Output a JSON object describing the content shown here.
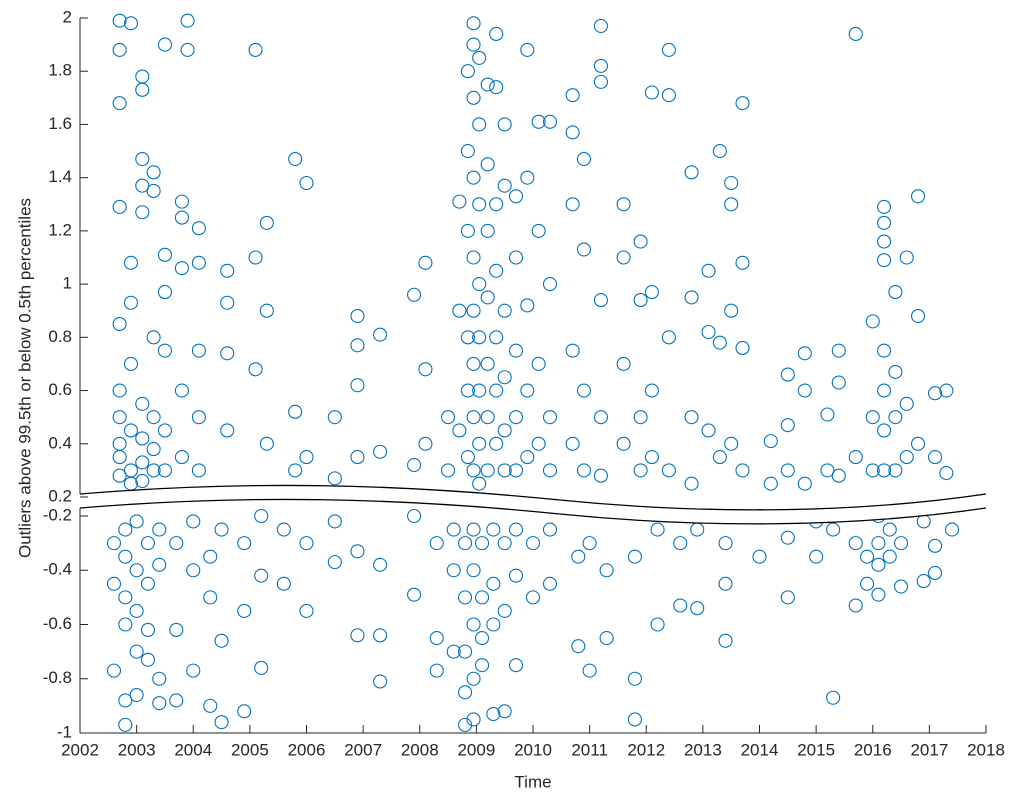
{
  "chart_data": [
    {
      "type": "scatter",
      "y_label": "Outliers above 99.5th or below 0.5th percentiles",
      "color": "#0072BD",
      "ylim": [
        0.2,
        2
      ],
      "yticks": [
        0.2,
        0.4,
        0.6,
        0.8,
        1,
        1.2,
        1.4,
        1.6,
        1.8,
        2
      ],
      "x": [
        2002.7,
        2002.7,
        2002.7,
        2002.7,
        2002.7,
        2002.7,
        2002.7,
        2002.7,
        2002.7,
        2002.7,
        2002.9,
        2002.9,
        2002.9,
        2002.9,
        2002.9,
        2002.9,
        2002.9,
        2003.1,
        2003.1,
        2003.1,
        2003.1,
        2003.1,
        2003.1,
        2003.1,
        2003.1,
        2003.1,
        2003.3,
        2003.3,
        2003.3,
        2003.3,
        2003.3,
        2003.3,
        2003.5,
        2003.5,
        2003.5,
        2003.5,
        2003.5,
        2003.5,
        2003.8,
        2003.8,
        2003.8,
        2003.8,
        2003.8,
        2003.9,
        2003.9,
        2004.1,
        2004.1,
        2004.1,
        2004.1,
        2004.1,
        2004.6,
        2004.6,
        2004.6,
        2004.6,
        2005.1,
        2005.1,
        2005.1,
        2005.3,
        2005.3,
        2005.3,
        2005.8,
        2005.8,
        2005.8,
        2006.0,
        2006.0,
        2006.5,
        2006.5,
        2006.9,
        2006.9,
        2006.9,
        2006.9,
        2007.3,
        2007.3,
        2007.9,
        2007.9,
        2008.1,
        2008.1,
        2008.1,
        2008.5,
        2008.5,
        2008.7,
        2008.7,
        2008.7,
        2008.85,
        2008.85,
        2008.85,
        2008.85,
        2008.85,
        2008.85,
        2008.95,
        2008.95,
        2008.95,
        2008.95,
        2008.95,
        2008.95,
        2008.95,
        2008.95,
        2008.95,
        2009.05,
        2009.05,
        2009.05,
        2009.05,
        2009.05,
        2009.05,
        2009.05,
        2009.05,
        2009.2,
        2009.2,
        2009.2,
        2009.2,
        2009.2,
        2009.2,
        2009.2,
        2009.35,
        2009.35,
        2009.35,
        2009.35,
        2009.35,
        2009.35,
        2009.35,
        2009.5,
        2009.5,
        2009.5,
        2009.5,
        2009.5,
        2009.5,
        2009.7,
        2009.7,
        2009.7,
        2009.7,
        2009.7,
        2009.9,
        2009.9,
        2009.9,
        2009.9,
        2009.9,
        2010.1,
        2010.1,
        2010.1,
        2010.1,
        2010.3,
        2010.3,
        2010.3,
        2010.3,
        2010.7,
        2010.7,
        2010.7,
        2010.7,
        2010.7,
        2010.9,
        2010.9,
        2010.9,
        2010.9,
        2011.2,
        2011.2,
        2011.2,
        2011.2,
        2011.2,
        2011.2,
        2011.6,
        2011.6,
        2011.6,
        2011.6,
        2011.9,
        2011.9,
        2011.9,
        2011.9,
        2012.1,
        2012.1,
        2012.1,
        2012.1,
        2012.4,
        2012.4,
        2012.4,
        2012.4,
        2012.8,
        2012.8,
        2012.8,
        2012.8,
        2013.1,
        2013.1,
        2013.1,
        2013.3,
        2013.3,
        2013.3,
        2013.5,
        2013.5,
        2013.5,
        2013.5,
        2013.7,
        2013.7,
        2013.7,
        2013.7,
        2014.2,
        2014.2,
        2014.5,
        2014.5,
        2014.5,
        2014.8,
        2014.8,
        2014.8,
        2015.2,
        2015.2,
        2015.4,
        2015.4,
        2015.4,
        2015.7,
        2015.7,
        2016.0,
        2016.0,
        2016.0,
        2016.2,
        2016.2,
        2016.2,
        2016.2,
        2016.2,
        2016.2,
        2016.2,
        2016.2,
        2016.4,
        2016.4,
        2016.4,
        2016.4,
        2016.6,
        2016.6,
        2016.6,
        2016.8,
        2016.8,
        2016.8,
        2017.1,
        2017.1,
        2017.3,
        2017.3
      ],
      "values": [
        1.99,
        1.88,
        1.68,
        1.29,
        0.85,
        0.5,
        0.35,
        0.28,
        0.4,
        0.6,
        1.98,
        1.08,
        0.93,
        0.45,
        0.3,
        0.25,
        0.7,
        1.78,
        1.73,
        1.47,
        1.37,
        1.27,
        0.55,
        0.42,
        0.33,
        0.26,
        1.42,
        1.35,
        0.8,
        0.5,
        0.38,
        0.3,
        1.9,
        1.11,
        0.97,
        0.75,
        0.45,
        0.3,
        1.31,
        1.25,
        1.06,
        0.6,
        0.35,
        1.99,
        1.88,
        1.21,
        1.08,
        0.75,
        0.5,
        0.3,
        1.05,
        0.93,
        0.74,
        0.45,
        1.88,
        1.1,
        0.68,
        1.23,
        0.9,
        0.4,
        1.47,
        0.52,
        0.3,
        1.38,
        0.35,
        0.5,
        0.27,
        0.88,
        0.77,
        0.62,
        0.35,
        0.81,
        0.37,
        0.96,
        0.32,
        1.08,
        0.68,
        0.4,
        0.5,
        0.3,
        1.31,
        0.9,
        0.45,
        1.8,
        1.5,
        1.2,
        0.8,
        0.6,
        0.35,
        1.98,
        1.9,
        1.7,
        1.4,
        1.1,
        0.9,
        0.7,
        0.5,
        0.3,
        1.85,
        1.6,
        1.3,
        1.0,
        0.8,
        0.6,
        0.4,
        0.25,
        1.75,
        1.45,
        1.2,
        0.95,
        0.7,
        0.5,
        0.3,
        1.94,
        1.74,
        1.3,
        1.05,
        0.8,
        0.6,
        0.4,
        1.6,
        1.37,
        0.9,
        0.65,
        0.45,
        0.3,
        1.33,
        1.1,
        0.75,
        0.5,
        0.3,
        1.88,
        1.4,
        0.92,
        0.6,
        0.35,
        1.61,
        1.2,
        0.7,
        0.4,
        1.61,
        1.0,
        0.5,
        0.3,
        1.71,
        1.57,
        1.3,
        0.75,
        0.4,
        1.47,
        1.13,
        0.6,
        0.3,
        1.97,
        1.82,
        1.76,
        0.94,
        0.5,
        0.28,
        1.3,
        1.1,
        0.7,
        0.4,
        1.16,
        0.94,
        0.5,
        0.3,
        1.72,
        0.97,
        0.6,
        0.35,
        1.71,
        1.88,
        0.8,
        0.3,
        1.42,
        0.95,
        0.5,
        0.25,
        1.05,
        0.82,
        0.45,
        1.5,
        0.78,
        0.35,
        1.38,
        1.3,
        0.9,
        0.4,
        1.68,
        1.08,
        0.76,
        0.3,
        0.41,
        0.25,
        0.66,
        0.47,
        0.3,
        0.74,
        0.6,
        0.25,
        0.51,
        0.3,
        0.75,
        0.63,
        0.28,
        1.94,
        0.35,
        0.86,
        0.5,
        0.3,
        1.29,
        1.23,
        1.16,
        1.09,
        0.75,
        0.6,
        0.45,
        0.3,
        0.97,
        0.67,
        0.5,
        0.3,
        1.1,
        0.55,
        0.35,
        1.33,
        0.88,
        0.4,
        0.59,
        0.35,
        0.6,
        0.29
      ]
    },
    {
      "type": "scatter",
      "x_label": "Time",
      "color": "#0072BD",
      "ylim": [
        -1,
        -0.2
      ],
      "yticks": [
        -1,
        -0.8,
        -0.6,
        -0.4,
        -0.2
      ],
      "xlim": [
        2002,
        2018
      ],
      "xticks": [
        2002,
        2003,
        2004,
        2005,
        2006,
        2007,
        2008,
        2009,
        2010,
        2011,
        2012,
        2013,
        2014,
        2015,
        2016,
        2017,
        2018
      ],
      "x": [
        2002.6,
        2002.6,
        2002.6,
        2002.8,
        2002.8,
        2002.8,
        2002.8,
        2002.8,
        2002.8,
        2003.0,
        2003.0,
        2003.0,
        2003.0,
        2003.0,
        2003.2,
        2003.2,
        2003.2,
        2003.2,
        2003.4,
        2003.4,
        2003.4,
        2003.4,
        2003.7,
        2003.7,
        2003.7,
        2004.0,
        2004.0,
        2004.0,
        2004.3,
        2004.3,
        2004.3,
        2004.5,
        2004.5,
        2004.5,
        2004.9,
        2004.9,
        2004.9,
        2005.2,
        2005.2,
        2005.2,
        2005.6,
        2005.6,
        2006.0,
        2006.0,
        2006.5,
        2006.5,
        2006.9,
        2006.9,
        2007.3,
        2007.3,
        2007.3,
        2007.9,
        2007.9,
        2008.3,
        2008.3,
        2008.3,
        2008.6,
        2008.6,
        2008.6,
        2008.8,
        2008.8,
        2008.8,
        2008.8,
        2008.8,
        2008.95,
        2008.95,
        2008.95,
        2008.95,
        2008.95,
        2009.1,
        2009.1,
        2009.1,
        2009.1,
        2009.3,
        2009.3,
        2009.3,
        2009.3,
        2009.5,
        2009.5,
        2009.5,
        2009.7,
        2009.7,
        2009.7,
        2010.0,
        2010.0,
        2010.3,
        2010.3,
        2010.8,
        2010.8,
        2011.0,
        2011.0,
        2011.3,
        2011.3,
        2011.8,
        2011.8,
        2011.8,
        2012.2,
        2012.2,
        2012.6,
        2012.6,
        2012.9,
        2012.9,
        2013.4,
        2013.4,
        2013.4,
        2014.0,
        2014.0,
        2014.5,
        2014.5,
        2015.0,
        2015.0,
        2015.3,
        2015.3,
        2015.7,
        2015.7,
        2015.9,
        2015.9,
        2016.1,
        2016.1,
        2016.1,
        2016.1,
        2016.3,
        2016.3,
        2016.5,
        2016.5,
        2016.9,
        2016.9,
        2017.1,
        2017.1,
        2017.4
      ],
      "values": [
        -0.3,
        -0.45,
        -0.77,
        -0.25,
        -0.35,
        -0.5,
        -0.6,
        -0.88,
        -0.97,
        -0.22,
        -0.4,
        -0.55,
        -0.7,
        -0.86,
        -0.3,
        -0.45,
        -0.62,
        -0.73,
        -0.25,
        -0.38,
        -0.8,
        -0.89,
        -0.3,
        -0.62,
        -0.88,
        -0.22,
        -0.4,
        -0.77,
        -0.35,
        -0.5,
        -0.9,
        -0.25,
        -0.66,
        -0.96,
        -0.3,
        -0.55,
        -0.92,
        -0.2,
        -0.42,
        -0.76,
        -0.25,
        -0.45,
        -0.3,
        -0.55,
        -0.22,
        -0.37,
        -0.33,
        -0.64,
        -0.38,
        -0.64,
        -0.81,
        -0.2,
        -0.49,
        -0.3,
        -0.65,
        -0.77,
        -0.25,
        -0.4,
        -0.7,
        -0.3,
        -0.5,
        -0.7,
        -0.85,
        -0.97,
        -0.25,
        -0.4,
        -0.6,
        -0.8,
        -0.95,
        -0.3,
        -0.5,
        -0.65,
        -0.75,
        -0.25,
        -0.45,
        -0.6,
        -0.93,
        -0.3,
        -0.55,
        -0.92,
        -0.25,
        -0.42,
        -0.75,
        -0.3,
        -0.5,
        -0.25,
        -0.45,
        -0.35,
        -0.68,
        -0.3,
        -0.77,
        -0.4,
        -0.65,
        -0.35,
        -0.8,
        -0.95,
        -0.25,
        -0.6,
        -0.3,
        -0.53,
        -0.25,
        -0.54,
        -0.3,
        -0.45,
        -0.66,
        -0.2,
        -0.35,
        -0.28,
        -0.5,
        -0.22,
        -0.35,
        -0.25,
        -0.87,
        -0.3,
        -0.53,
        -0.35,
        -0.45,
        -0.2,
        -0.3,
        -0.38,
        -0.49,
        -0.25,
        -0.35,
        -0.3,
        -0.46,
        -0.22,
        -0.44,
        -0.31,
        -0.41,
        -0.25
      ]
    }
  ]
}
